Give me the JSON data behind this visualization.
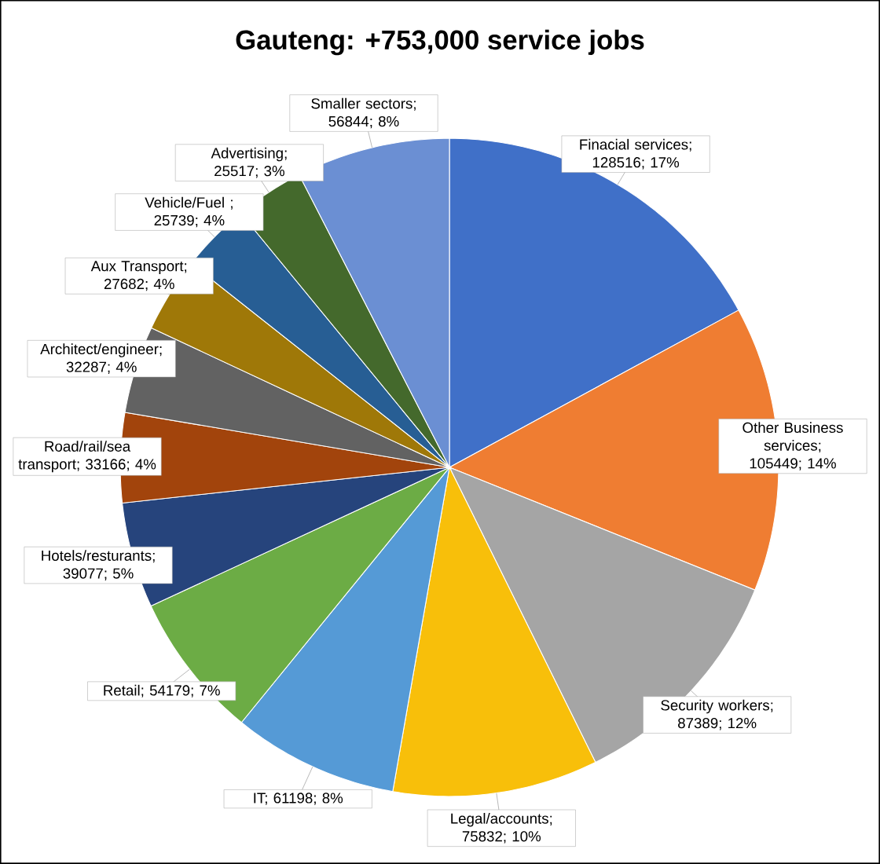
{
  "chart_data": {
    "type": "pie",
    "title": "Gauteng: +753,000 service jobs",
    "categories": [
      "Finacial services; 128516; 17%",
      "Other Business services; 105449; 14%",
      "Security workers; 87389; 12%",
      "Legal/accounts; 75832; 10%",
      "IT; 61198; 8%",
      "Retail; 54179; 7%",
      "Hotels/resturants; 39077; 5%",
      "Road/rail/sea transport; 33166; 4%",
      "Architect/engineer; 32287; 4%",
      "Aux Transport; 27682; 4%",
      "Vehicle/Fuel ; 25739; 4%",
      "Advertising; 25517; 3%",
      "Smaller sectors; 56844; 8%"
    ],
    "values": [
      128516,
      105449,
      87389,
      75832,
      61198,
      54179,
      39077,
      33166,
      32287,
      27682,
      25739,
      25517,
      56844
    ],
    "colors": [
      "#4070c8",
      "#ef7d32",
      "#a5a5a5",
      "#f8bf0a",
      "#559ad6",
      "#6cac45",
      "#26447c",
      "#a2440c",
      "#626262",
      "#9f7808",
      "#275e94",
      "#44692c",
      "#6b8fd3"
    ]
  }
}
